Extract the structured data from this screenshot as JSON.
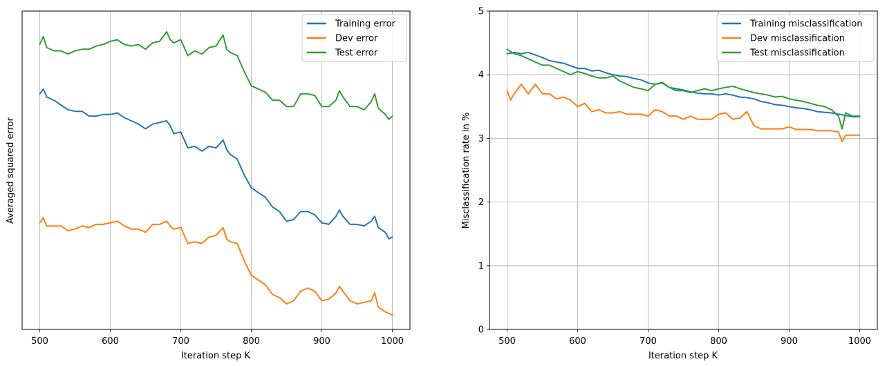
{
  "chart_data": [
    {
      "type": "line",
      "title": "",
      "xlabel": "Iteration step K",
      "ylabel": "Averaged squared error",
      "xlim": [
        475,
        1025
      ],
      "ylim": [
        0,
        1
      ],
      "y_ticks_visible": false,
      "x_ticks": [
        500,
        600,
        700,
        800,
        900,
        1000
      ],
      "grid": "x-only",
      "legend_position": "top-right",
      "series": [
        {
          "name": "Training error",
          "color": "#1f77b4",
          "x": [
            500,
            505,
            510,
            520,
            530,
            540,
            550,
            560,
            570,
            580,
            590,
            600,
            610,
            620,
            630,
            640,
            650,
            660,
            670,
            680,
            685,
            690,
            700,
            710,
            720,
            730,
            740,
            750,
            760,
            765,
            770,
            780,
            790,
            800,
            810,
            820,
            830,
            840,
            850,
            860,
            870,
            880,
            890,
            900,
            910,
            920,
            925,
            930,
            940,
            950,
            960,
            970,
            975,
            980,
            990,
            995,
            1000
          ],
          "y": [
            0.74,
            0.755,
            0.73,
            0.72,
            0.705,
            0.69,
            0.685,
            0.685,
            0.67,
            0.67,
            0.675,
            0.675,
            0.68,
            0.665,
            0.655,
            0.645,
            0.63,
            0.645,
            0.65,
            0.655,
            0.64,
            0.615,
            0.62,
            0.57,
            0.575,
            0.56,
            0.575,
            0.57,
            0.595,
            0.565,
            0.55,
            0.535,
            0.485,
            0.445,
            0.43,
            0.415,
            0.385,
            0.37,
            0.34,
            0.345,
            0.37,
            0.37,
            0.36,
            0.335,
            0.33,
            0.355,
            0.375,
            0.355,
            0.33,
            0.33,
            0.325,
            0.34,
            0.355,
            0.32,
            0.305,
            0.285,
            0.29
          ]
        },
        {
          "name": "Dev error",
          "color": "#ff7f0e",
          "x": [
            500,
            505,
            510,
            520,
            530,
            540,
            550,
            560,
            570,
            580,
            590,
            600,
            610,
            620,
            630,
            640,
            650,
            660,
            670,
            680,
            685,
            690,
            700,
            710,
            720,
            730,
            740,
            750,
            760,
            765,
            770,
            780,
            790,
            800,
            810,
            820,
            830,
            840,
            850,
            860,
            870,
            880,
            890,
            900,
            910,
            920,
            925,
            930,
            940,
            950,
            960,
            970,
            975,
            980,
            990,
            995,
            1000
          ],
          "y": [
            0.335,
            0.35,
            0.325,
            0.325,
            0.325,
            0.31,
            0.315,
            0.325,
            0.32,
            0.33,
            0.33,
            0.335,
            0.34,
            0.325,
            0.315,
            0.315,
            0.305,
            0.33,
            0.33,
            0.34,
            0.325,
            0.315,
            0.32,
            0.27,
            0.275,
            0.27,
            0.29,
            0.295,
            0.32,
            0.285,
            0.275,
            0.27,
            0.215,
            0.17,
            0.155,
            0.14,
            0.11,
            0.1,
            0.08,
            0.09,
            0.12,
            0.13,
            0.12,
            0.09,
            0.095,
            0.115,
            0.135,
            0.12,
            0.09,
            0.08,
            0.085,
            0.09,
            0.115,
            0.07,
            0.055,
            0.05,
            0.045
          ]
        },
        {
          "name": "Test error",
          "color": "#2ca02c",
          "x": [
            500,
            505,
            510,
            520,
            530,
            540,
            550,
            560,
            570,
            580,
            590,
            600,
            610,
            620,
            630,
            640,
            650,
            660,
            670,
            680,
            685,
            690,
            700,
            710,
            720,
            730,
            740,
            750,
            760,
            765,
            770,
            780,
            790,
            800,
            810,
            820,
            830,
            840,
            850,
            860,
            870,
            880,
            890,
            900,
            910,
            920,
            925,
            930,
            940,
            950,
            960,
            970,
            975,
            980,
            990,
            995,
            1000
          ],
          "y": [
            0.895,
            0.92,
            0.885,
            0.875,
            0.875,
            0.865,
            0.875,
            0.88,
            0.88,
            0.89,
            0.895,
            0.905,
            0.91,
            0.895,
            0.89,
            0.895,
            0.88,
            0.9,
            0.905,
            0.935,
            0.91,
            0.9,
            0.91,
            0.86,
            0.875,
            0.865,
            0.885,
            0.89,
            0.925,
            0.88,
            0.87,
            0.86,
            0.81,
            0.765,
            0.755,
            0.745,
            0.72,
            0.72,
            0.7,
            0.7,
            0.74,
            0.74,
            0.735,
            0.7,
            0.7,
            0.72,
            0.75,
            0.73,
            0.7,
            0.7,
            0.69,
            0.715,
            0.74,
            0.695,
            0.675,
            0.66,
            0.67
          ]
        }
      ]
    },
    {
      "type": "line",
      "title": "",
      "xlabel": "Iteration step K",
      "ylabel": "Misclassification rate in %",
      "xlim": [
        475,
        1025
      ],
      "ylim": [
        0,
        5
      ],
      "x_ticks": [
        500,
        600,
        700,
        800,
        900,
        1000
      ],
      "y_ticks": [
        0,
        1,
        2,
        3,
        4,
        5
      ],
      "grid": "both",
      "legend_position": "top-right",
      "series": [
        {
          "name": "Training misclassification",
          "color": "#1f77b4",
          "x": [
            500,
            510,
            520,
            530,
            540,
            550,
            560,
            570,
            580,
            590,
            600,
            610,
            620,
            630,
            640,
            650,
            660,
            670,
            680,
            690,
            700,
            710,
            720,
            730,
            740,
            750,
            760,
            770,
            780,
            790,
            800,
            810,
            820,
            830,
            840,
            850,
            860,
            870,
            880,
            890,
            900,
            910,
            920,
            930,
            940,
            950,
            960,
            970,
            980,
            990,
            1000
          ],
          "y": [
            4.33,
            4.35,
            4.33,
            4.35,
            4.31,
            4.27,
            4.22,
            4.2,
            4.18,
            4.14,
            4.1,
            4.1,
            4.06,
            4.07,
            4.03,
            4.0,
            3.98,
            3.97,
            3.94,
            3.92,
            3.87,
            3.85,
            3.87,
            3.8,
            3.78,
            3.76,
            3.73,
            3.71,
            3.7,
            3.7,
            3.68,
            3.7,
            3.68,
            3.65,
            3.64,
            3.62,
            3.58,
            3.56,
            3.53,
            3.52,
            3.5,
            3.48,
            3.47,
            3.45,
            3.42,
            3.41,
            3.4,
            3.38,
            3.36,
            3.34,
            3.34
          ]
        },
        {
          "name": "Dev misclassification",
          "color": "#ff7f0e",
          "x": [
            500,
            505,
            510,
            520,
            530,
            540,
            550,
            560,
            570,
            580,
            590,
            600,
            610,
            620,
            630,
            640,
            650,
            660,
            670,
            680,
            690,
            700,
            710,
            720,
            730,
            740,
            750,
            760,
            770,
            780,
            790,
            800,
            810,
            820,
            830,
            840,
            850,
            860,
            870,
            880,
            890,
            900,
            910,
            920,
            930,
            940,
            950,
            960,
            970,
            975,
            980,
            990,
            1000
          ],
          "y": [
            3.75,
            3.6,
            3.7,
            3.85,
            3.7,
            3.85,
            3.7,
            3.7,
            3.62,
            3.65,
            3.6,
            3.5,
            3.55,
            3.42,
            3.45,
            3.4,
            3.4,
            3.42,
            3.38,
            3.38,
            3.38,
            3.35,
            3.45,
            3.42,
            3.35,
            3.35,
            3.3,
            3.35,
            3.3,
            3.3,
            3.3,
            3.38,
            3.4,
            3.3,
            3.32,
            3.42,
            3.2,
            3.15,
            3.15,
            3.15,
            3.15,
            3.18,
            3.14,
            3.14,
            3.14,
            3.12,
            3.12,
            3.12,
            3.1,
            2.95,
            3.05,
            3.05,
            3.05
          ]
        },
        {
          "name": "Test misclassification",
          "color": "#2ca02c",
          "x": [
            500,
            510,
            520,
            530,
            540,
            550,
            560,
            570,
            580,
            590,
            600,
            610,
            620,
            630,
            640,
            650,
            660,
            670,
            680,
            690,
            700,
            710,
            720,
            730,
            740,
            750,
            760,
            770,
            780,
            790,
            800,
            810,
            820,
            830,
            840,
            850,
            860,
            870,
            880,
            890,
            900,
            910,
            920,
            930,
            940,
            950,
            960,
            970,
            975,
            980,
            990,
            1000
          ],
          "y": [
            4.4,
            4.33,
            4.3,
            4.25,
            4.2,
            4.15,
            4.15,
            4.1,
            4.05,
            4.0,
            4.05,
            4.02,
            3.98,
            3.95,
            3.95,
            3.98,
            3.9,
            3.85,
            3.8,
            3.78,
            3.75,
            3.85,
            3.88,
            3.8,
            3.75,
            3.75,
            3.72,
            3.75,
            3.78,
            3.75,
            3.78,
            3.8,
            3.82,
            3.78,
            3.75,
            3.72,
            3.7,
            3.68,
            3.65,
            3.66,
            3.62,
            3.6,
            3.58,
            3.55,
            3.52,
            3.5,
            3.45,
            3.35,
            3.15,
            3.4,
            3.35,
            3.35
          ]
        }
      ]
    }
  ]
}
